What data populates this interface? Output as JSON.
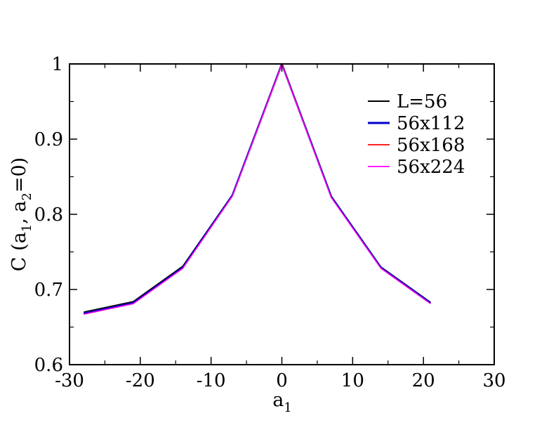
{
  "chart_data": {
    "type": "line",
    "xlabel": {
      "main": "a",
      "sub": "1"
    },
    "ylabel": {
      "p1": "C (a",
      "s1": "1",
      "p2": ", a",
      "s2": "2",
      "p3": "=0)"
    },
    "xlim": [
      -30,
      30
    ],
    "ylim": [
      0.6,
      1.0
    ],
    "xticks": [
      -30,
      -20,
      -10,
      0,
      10,
      20,
      30
    ],
    "xtick_labels": [
      "-30",
      "-20",
      "-10",
      "0",
      "10",
      "20",
      "30"
    ],
    "yticks": [
      0.6,
      0.7,
      0.8,
      0.9,
      1.0
    ],
    "ytick_labels": [
      "0.6",
      "0.7",
      "0.8",
      "0.9",
      "1"
    ],
    "x_minor_step": 5,
    "y_minor_step": 0.05,
    "grid": false,
    "legend_position": "top-right",
    "series": [
      {
        "name": "L=56",
        "color": "#000000",
        "stroke_width": 1.6,
        "x": [
          -28,
          -21,
          -14,
          -7,
          0,
          7,
          14,
          21
        ],
        "y": [
          0.67,
          0.684,
          0.731,
          0.826,
          1.0,
          0.824,
          0.73,
          0.683
        ]
      },
      {
        "name": "56x112",
        "color": "#0000cc",
        "stroke_width": 2.6,
        "x": [
          -28,
          -21,
          -14,
          -7,
          0,
          7,
          14,
          21
        ],
        "y": [
          0.668,
          0.682,
          0.729,
          0.825,
          1.0,
          0.823,
          0.729,
          0.682
        ]
      },
      {
        "name": "56x168",
        "color": "#ff0000",
        "stroke_width": 1.4,
        "x": [
          -28,
          -21,
          -14,
          -7,
          0,
          7,
          14,
          21
        ],
        "y": [
          0.667,
          0.681,
          0.728,
          0.824,
          1.0,
          0.822,
          0.728,
          0.681
        ]
      },
      {
        "name": "56x224",
        "color": "#ff00ff",
        "stroke_width": 1.4,
        "x": [
          -28,
          -21,
          -14,
          -7,
          0,
          7,
          14,
          21
        ],
        "y": [
          0.667,
          0.681,
          0.728,
          0.824,
          0.999,
          0.822,
          0.728,
          0.681
        ]
      }
    ]
  }
}
